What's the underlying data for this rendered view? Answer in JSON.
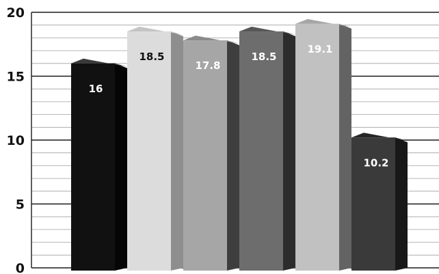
{
  "chart_data": {
    "type": "bar",
    "title": "",
    "xlabel": "",
    "ylabel": "",
    "ylim": [
      0,
      20
    ],
    "yticks": [
      0,
      5,
      10,
      15,
      20
    ],
    "minor_step": 1,
    "grid": true,
    "legend": "none",
    "values": [
      16,
      18.5,
      17.8,
      18.5,
      19.1,
      10.2
    ],
    "labels": [
      "16",
      "18.5",
      "17.8",
      "18.5",
      "19.1",
      "10.2"
    ],
    "colors": [
      {
        "front": "#111111",
        "side": "#050505",
        "top": "#3a3a3a",
        "label": "#ffffff"
      },
      {
        "front": "#dcdcdc",
        "side": "#8e8e8e",
        "top": "#c4c4c4",
        "label": "#111111"
      },
      {
        "front": "#a6a6a6",
        "side": "#3e3e3e",
        "top": "#8a8a8a",
        "label": "#ffffff"
      },
      {
        "front": "#6d6d6d",
        "side": "#2c2c2c",
        "top": "#565656",
        "label": "#ffffff"
      },
      {
        "front": "#c1c1c1",
        "side": "#636363",
        "top": "#a6a6a6",
        "label": "#ffffff"
      },
      {
        "front": "#3a3a3a",
        "side": "#181818",
        "top": "#262626",
        "label": "#ffffff"
      }
    ]
  }
}
